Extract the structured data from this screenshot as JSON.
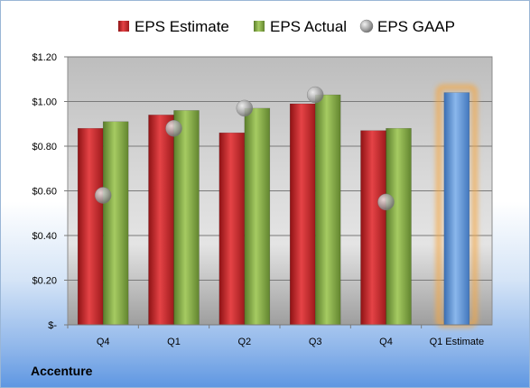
{
  "company": "Accenture",
  "chart_data": {
    "type": "bar",
    "categories": [
      "Q4",
      "Q1",
      "Q2",
      "Q3",
      "Q4",
      "Q1 Estimate"
    ],
    "series": [
      {
        "name": "EPS Estimate",
        "kind": "bar",
        "color": "#c0282a",
        "values": [
          0.88,
          0.94,
          0.86,
          0.99,
          0.87,
          null
        ]
      },
      {
        "name": "EPS Actual",
        "kind": "bar",
        "color": "#7ea443",
        "values": [
          0.91,
          0.96,
          0.97,
          1.03,
          0.88,
          null
        ]
      },
      {
        "name": "EPS GAAP",
        "kind": "marker",
        "color": "#9a9a9a",
        "values": [
          0.58,
          0.88,
          0.97,
          1.03,
          0.55,
          null
        ]
      },
      {
        "name": "",
        "kind": "bar",
        "color": "#5b93d6",
        "highlight": "#f5a742",
        "values": [
          null,
          null,
          null,
          null,
          null,
          1.04
        ]
      }
    ],
    "yticks": [
      "$-",
      "$0.20",
      "$0.40",
      "$0.60",
      "$0.80",
      "$1.00",
      "$1.20"
    ],
    "ylim": [
      0,
      1.2
    ],
    "grid": true,
    "legend": "top"
  }
}
